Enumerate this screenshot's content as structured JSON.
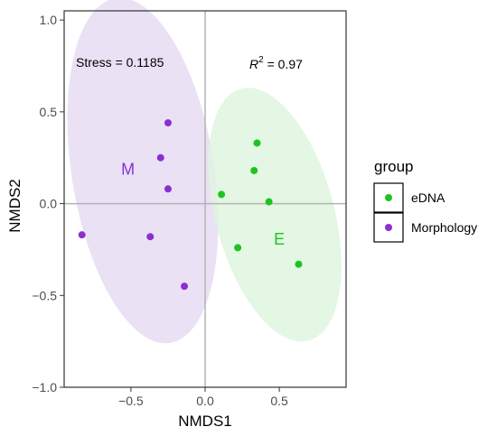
{
  "chart_data": {
    "type": "scatter",
    "xlabel": "NMDS1",
    "ylabel": "NMDS2",
    "xlim": [
      -0.95,
      0.95
    ],
    "ylim": [
      -1.0,
      1.05
    ],
    "x_ticks": [
      {
        "value": -0.5,
        "label": "−0.5"
      },
      {
        "value": 0.0,
        "label": "0.0"
      },
      {
        "value": 0.5,
        "label": "0.5"
      }
    ],
    "y_ticks": [
      {
        "value": -1.0,
        "label": "−1.0"
      },
      {
        "value": -0.5,
        "label": "−0.5"
      },
      {
        "value": 0.0,
        "label": "0.0"
      },
      {
        "value": 0.5,
        "label": "0.5"
      },
      {
        "value": 1.0,
        "label": "1.0"
      }
    ],
    "grid": false,
    "reference_lines": {
      "x": 0,
      "y": 0
    },
    "annotations": {
      "stress": "Stress = 0.1185",
      "r2_base": "R",
      "r2_sup": "2",
      "r2_rest": " = 0.97"
    },
    "legend": {
      "title": "group",
      "placement": "right"
    },
    "series": [
      {
        "name": "eDNA",
        "label": "E",
        "color": "#1fc31f",
        "fill": "#dff5df",
        "label_pos": [
          0.5,
          -0.2
        ],
        "ellipse": {
          "center": [
            0.47,
            -0.06
          ],
          "semi_axes": [
            0.4,
            0.71
          ],
          "angle_deg": -15
        },
        "points": [
          {
            "x": 0.35,
            "y": 0.33
          },
          {
            "x": 0.33,
            "y": 0.18
          },
          {
            "x": 0.11,
            "y": 0.05
          },
          {
            "x": 0.43,
            "y": 0.01
          },
          {
            "x": 0.22,
            "y": -0.24
          },
          {
            "x": 0.63,
            "y": -0.33
          }
        ]
      },
      {
        "name": "Morphology",
        "label": "M",
        "color": "#8b2fd1",
        "fill": "#e6dcf3",
        "label_pos": [
          -0.52,
          0.18
        ],
        "ellipse": {
          "center": [
            -0.42,
            0.18
          ],
          "semi_axes": [
            0.48,
            0.95
          ],
          "angle_deg": -9
        },
        "points": [
          {
            "x": -0.25,
            "y": 0.44
          },
          {
            "x": -0.3,
            "y": 0.25
          },
          {
            "x": -0.25,
            "y": 0.08
          },
          {
            "x": -0.83,
            "y": -0.17
          },
          {
            "x": -0.37,
            "y": -0.18
          },
          {
            "x": -0.14,
            "y": -0.45
          }
        ]
      }
    ]
  }
}
